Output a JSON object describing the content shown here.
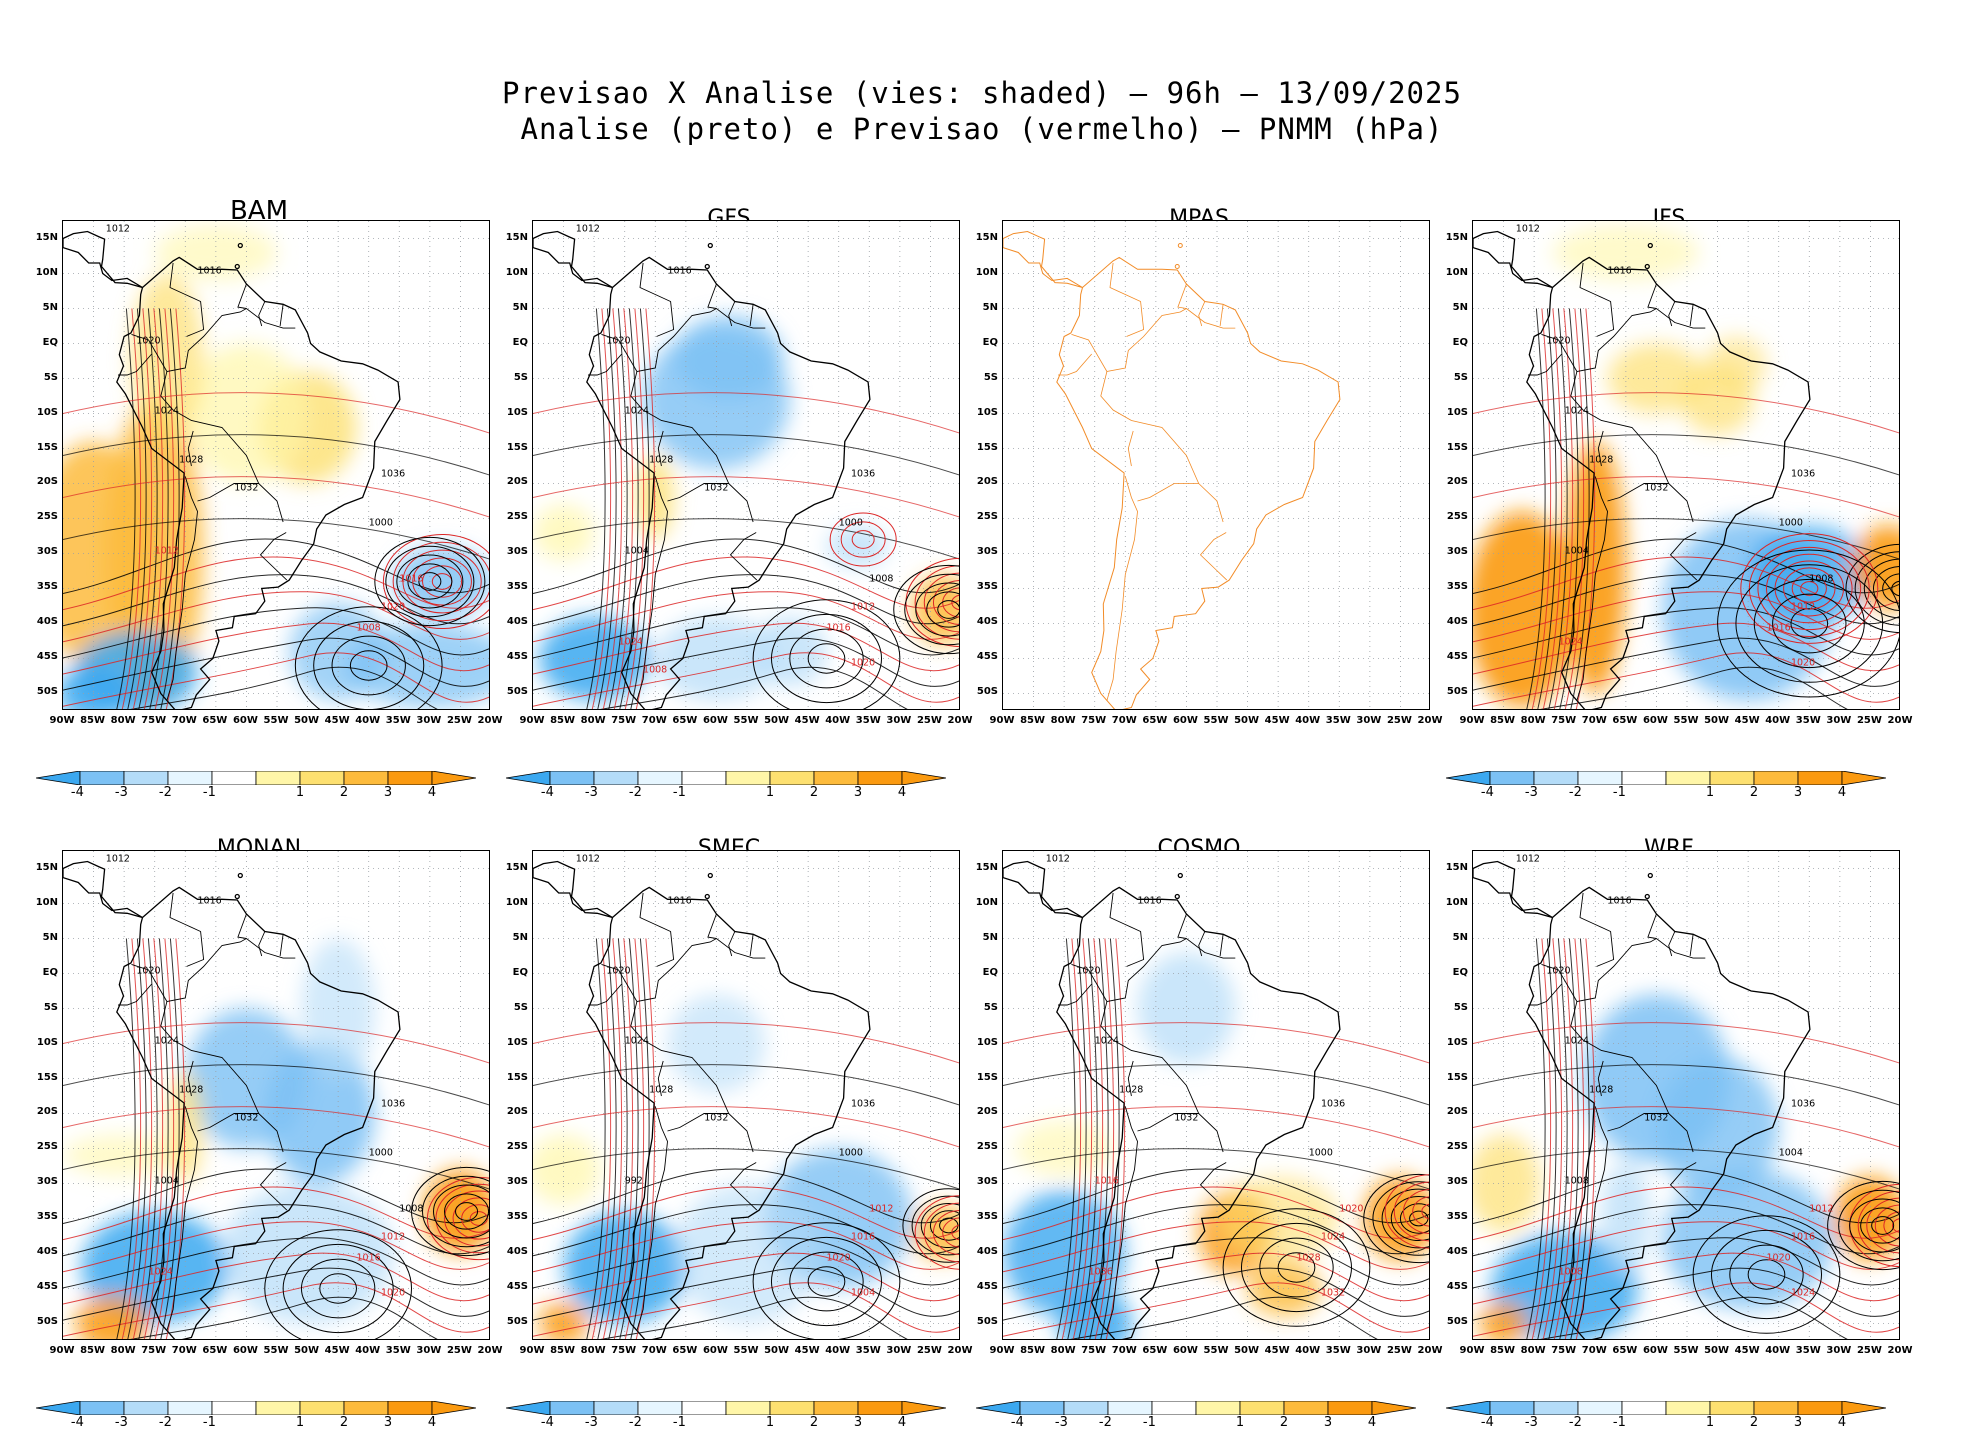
{
  "title": {
    "line1": "Previsao X Analise (vies: shaded) – 96h – 13/09/2025",
    "line2": "Analise (preto) e Previsao (vermelho) – PNMM (hPa)"
  },
  "lat_labels": [
    "15N",
    "10N",
    "5N",
    "EQ",
    "5S",
    "10S",
    "15S",
    "20S",
    "25S",
    "30S",
    "35S",
    "40S",
    "45S",
    "50S"
  ],
  "lon_labels": [
    "90W",
    "85W",
    "80W",
    "75W",
    "70W",
    "65W",
    "60W",
    "55W",
    "50W",
    "45W",
    "40W",
    "35W",
    "30W",
    "25W",
    "20W"
  ],
  "colorbar": {
    "labels": [
      "-4",
      "-3",
      "-2",
      "-1",
      "1",
      "2",
      "3",
      "4"
    ],
    "colors": [
      "#3ba8f0",
      "#7cc1f4",
      "#b4dcf8",
      "#e6f6ff",
      "#ffffff",
      "#fff6a8",
      "#fde070",
      "#fdbb3c",
      "#fb9a10"
    ]
  },
  "colors": {
    "analysis": "#000000",
    "forecast": "#dc2626",
    "coast_mpas": "#f28c28"
  },
  "panels": [
    {
      "name": "BAM",
      "labels": {
        "black": [
          "1012",
          "1016",
          "1020",
          "1024",
          "1028",
          "1032",
          "1036",
          "1000"
        ],
        "red": [
          "1012",
          "1016",
          "1020",
          "1008"
        ]
      }
    },
    {
      "name": "GFS",
      "labels": {
        "black": [
          "1012",
          "1016",
          "1020",
          "1024",
          "1028",
          "1032",
          "1036",
          "1000",
          "1004",
          "1008"
        ],
        "red": [
          "1012",
          "1016",
          "1020",
          "1024",
          "1008"
        ]
      }
    },
    {
      "name": "MPAS",
      "labels": {
        "black": [],
        "red": []
      }
    },
    {
      "name": "IFS",
      "labels": {
        "black": [
          "1012",
          "1016",
          "1020",
          "1024",
          "1028",
          "1032",
          "1036",
          "1000",
          "1004",
          "1008"
        ],
        "red": [
          "1012",
          "1016",
          "1020",
          "1024"
        ]
      }
    },
    {
      "name": "MONAN",
      "labels": {
        "black": [
          "1012",
          "1016",
          "1020",
          "1024",
          "1028",
          "1032",
          "1036",
          "1000",
          "1004",
          "1008"
        ],
        "red": [
          "1012",
          "1016",
          "1020",
          "1024"
        ]
      }
    },
    {
      "name": "SMEC",
      "labels": {
        "black": [
          "1012",
          "1016",
          "1020",
          "1024",
          "1028",
          "1032",
          "1036",
          "1000",
          "992"
        ],
        "red": [
          "1012",
          "1016",
          "1020",
          "1004"
        ]
      }
    },
    {
      "name": "COSMO",
      "labels": {
        "black": [
          "1012",
          "1016",
          "1020",
          "1024",
          "1028",
          "1032",
          "1036",
          "1000"
        ],
        "red": [
          "1016",
          "1020",
          "1024",
          "1028",
          "1032",
          "1036"
        ]
      }
    },
    {
      "name": "WRF",
      "labels": {
        "black": [
          "1012",
          "1016",
          "1020",
          "1024",
          "1028",
          "1032",
          "1036",
          "1004",
          "1008"
        ],
        "red": [
          "1012",
          "1016",
          "1020",
          "1024",
          "1008"
        ]
      }
    }
  ]
}
